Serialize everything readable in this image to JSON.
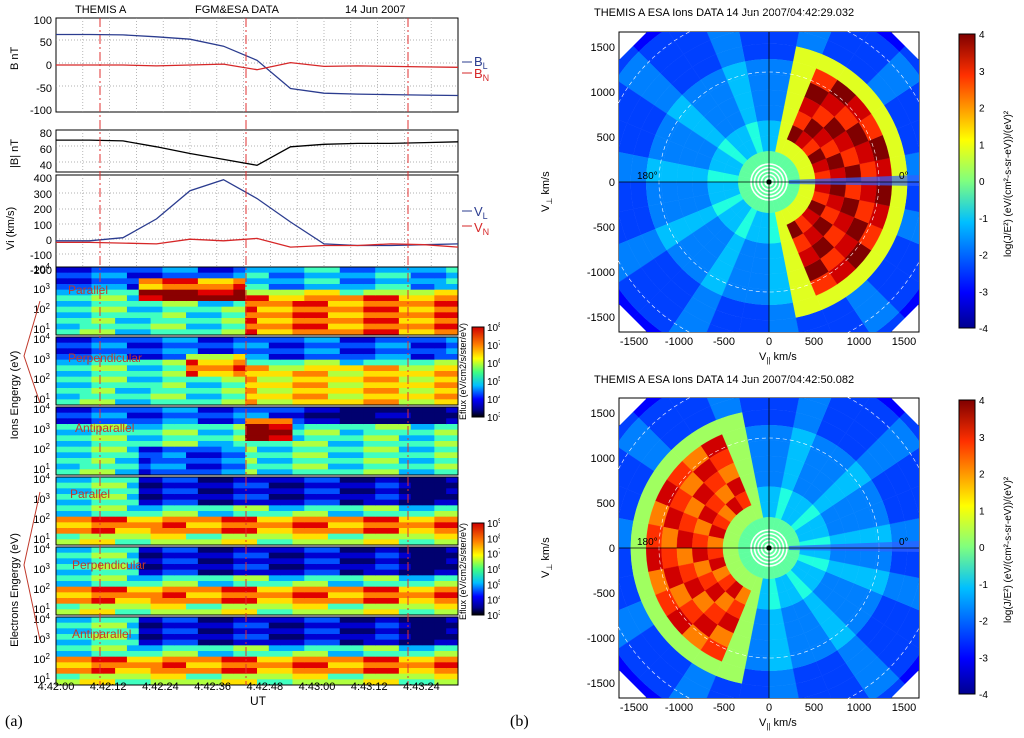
{
  "captions": {
    "a": "(a)",
    "b": "(b)"
  },
  "left": {
    "header": {
      "mission": "THEMIS A",
      "data": "FGM&ESA  DATA",
      "date": "14 Jun 2007"
    },
    "panel_b": {
      "ylabel": "B nT",
      "yticks": [
        "100",
        "50",
        "0",
        "-50",
        "-100"
      ],
      "legend": [
        {
          "text": "B",
          "sub": "L",
          "color": "#2b3c8f"
        },
        {
          "text": "B",
          "sub": "N",
          "color": "#d62728"
        }
      ]
    },
    "panel_bmag": {
      "ylabel": "|B| nT",
      "yticks": [
        "80",
        "60",
        "40"
      ]
    },
    "panel_v": {
      "ylabel": "Vi (km/s)",
      "yticks": [
        "400",
        "300",
        "200",
        "100",
        "0",
        "-100",
        "-200"
      ],
      "legend": [
        {
          "text": "V",
          "sub": "L",
          "color": "#2b3c8f"
        },
        {
          "text": "V",
          "sub": "N",
          "color": "#d62728"
        }
      ]
    },
    "spectrogram_labels": [
      "Parallel",
      "Perpendicular",
      "Antiparallel",
      "Parallel",
      "Perpendicular",
      "Antiparallel"
    ],
    "ions_label": "Ions Engergy (eV)",
    "electrons_label": "Electrons Engergy (eV)",
    "ion_cbar": {
      "label": "Eflux (eV/cm2/s/ster/eV)",
      "ticks": [
        "10^8",
        "10^7",
        "10^6",
        "10^5",
        "10^4",
        "10^3"
      ]
    },
    "ele_cbar": {
      "label": "Eflux (eV/cm2/s/ster/eV)",
      "ticks": [
        "10^9",
        "10^8",
        "10^7",
        "10^6",
        "10^5",
        "10^4",
        "10^3"
      ]
    },
    "spec_yticks": [
      "10^4",
      "10^3",
      "10^2",
      "10^1"
    ],
    "xticks": [
      "4:42:00",
      "4:42:12",
      "4:42:24",
      "4:42:36",
      "4:42:48",
      "4:43:00",
      "4:43:12",
      "4:43:24"
    ],
    "xlabel": "UT"
  },
  "right": {
    "top_title": "THEMIS A    ESA   Ions  DATA   14 Jun 2007/04:42:29.032",
    "bottom_title": "THEMIS A    ESA   Ions  DATA   14 Jun 2007/04:42:50.082",
    "xlabel": "V_|| km/s",
    "ylabel": "V_⊥ km/s",
    "axis_ticks": [
      "-1500",
      "-1000",
      "-500",
      "0",
      "500",
      "1000",
      "1500"
    ],
    "angle_labels": [
      "180°",
      "0°"
    ],
    "cbar_ticks": [
      "4",
      "3",
      "2",
      "1",
      "0",
      "-1",
      "-2",
      "-3",
      "-4"
    ],
    "cbar_label": "log(J/E²) (eV/(cm²-s-sr-eV))/(eV)²"
  },
  "chart_data": [
    {
      "type": "line",
      "title": "",
      "ylabel": "B nT",
      "ylim": [
        -100,
        100
      ],
      "series": [
        {
          "name": "BL",
          "values": [
            65,
            65,
            64,
            60,
            55,
            40,
            10,
            -50,
            -60,
            -62,
            -63,
            -64,
            -65
          ]
        },
        {
          "name": "BN",
          "values": [
            0,
            0,
            0,
            -2,
            0,
            2,
            -10,
            5,
            -3,
            -2,
            -3,
            -4,
            -5
          ]
        }
      ]
    },
    {
      "type": "line",
      "ylabel": "|B| nT",
      "ylim": [
        30,
        80
      ],
      "series": [
        {
          "name": "|B|",
          "values": [
            68,
            68,
            67,
            60,
            52,
            45,
            38,
            60,
            63,
            64,
            64,
            65,
            66
          ]
        }
      ]
    },
    {
      "type": "line",
      "ylabel": "Vi (km/s)",
      "ylim": [
        -200,
        400
      ],
      "series": [
        {
          "name": "VL",
          "values": [
            -20,
            -20,
            0,
            120,
            300,
            370,
            250,
            100,
            -40,
            -50,
            -50,
            -45,
            -40
          ]
        },
        {
          "name": "VN",
          "values": [
            -30,
            -30,
            -35,
            -40,
            -10,
            -20,
            -5,
            -60,
            -50,
            -50,
            -40,
            -45,
            -60
          ]
        }
      ]
    }
  ]
}
